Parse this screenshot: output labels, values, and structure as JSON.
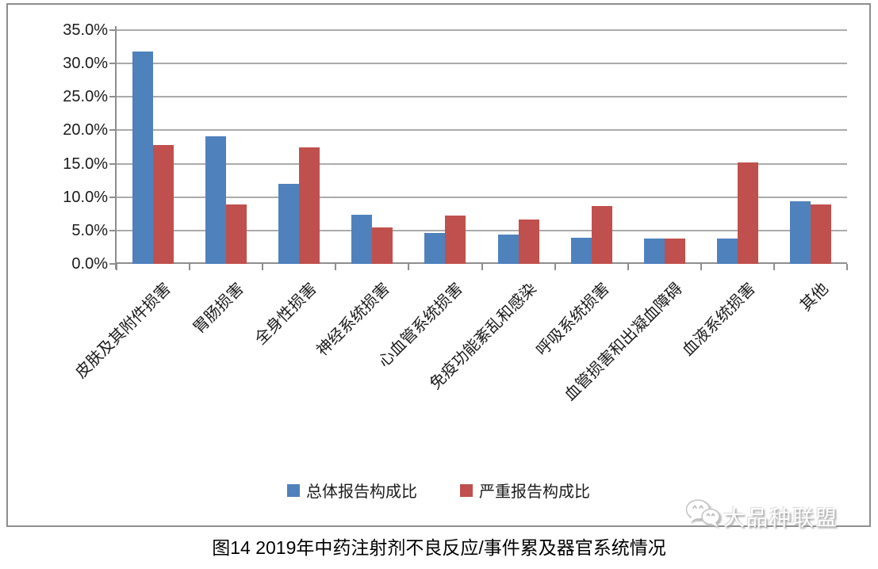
{
  "chart_data": {
    "type": "bar",
    "categories": [
      "皮肤及其附件损害",
      "胃肠损害",
      "全身性损害",
      "神经系统损害",
      "心血管系统损害",
      "免疫功能紊乱和感染",
      "呼吸系统损害",
      "血管损害和出凝血障碍",
      "血液系统损害",
      "其他"
    ],
    "series": [
      {
        "name": "总体报告构成比",
        "color": "#4f81bd",
        "values": [
          31.8,
          19.1,
          12.0,
          7.4,
          4.6,
          4.4,
          3.9,
          3.8,
          3.8,
          9.4
        ]
      },
      {
        "name": "严重报告构成比",
        "color": "#c0504d",
        "values": [
          17.8,
          8.9,
          17.4,
          5.4,
          7.2,
          6.6,
          8.7,
          3.8,
          15.2,
          8.9
        ]
      }
    ],
    "ylim": [
      0,
      35
    ],
    "ytick_step": 5,
    "ytick_labels_top_to_bottom": [
      "35.0%",
      "30.0%",
      "25.0%",
      "20.0%",
      "15.0%",
      "10.0%",
      "5.0%",
      "0.0%"
    ],
    "xlabel": "",
    "ylabel": "",
    "grid": true,
    "legend_position": "bottom"
  },
  "caption": "图14 2019年中药注射剂不良反应/事件累及器官系统情况",
  "watermark": {
    "text": "大品种联盟",
    "icon": "wechat-bubbles-icon"
  },
  "colors": {
    "series_total": "#4f81bd",
    "series_serious": "#c0504d",
    "gridline": "#ababab",
    "axis": "#8e8e8e",
    "tick_text": "#1c1c1c",
    "watermark_text": "#ffffff"
  }
}
